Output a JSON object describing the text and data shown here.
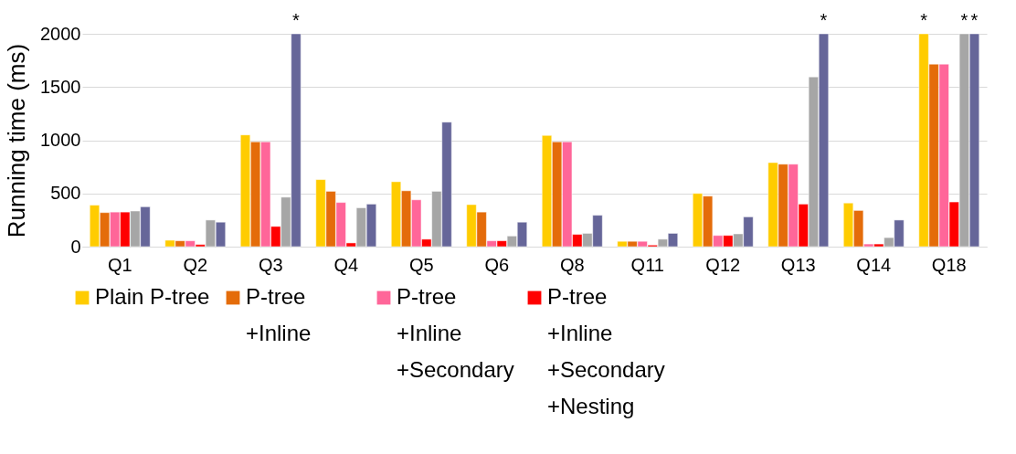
{
  "chart_data": {
    "type": "bar",
    "ylabel": "Running time (ms)",
    "categories": [
      "Q1",
      "Q2",
      "Q3",
      "Q4",
      "Q5",
      "Q6",
      "Q8",
      "Q11",
      "Q12",
      "Q13",
      "Q14",
      "Q18"
    ],
    "series": [
      {
        "name": "Plain P-tree",
        "color": "#ffcc00",
        "values": [
          390,
          60,
          1050,
          630,
          610,
          395,
          1045,
          50,
          500,
          790,
          410,
          2000
        ]
      },
      {
        "name": "P-tree +Inline",
        "color": "#e46c0a",
        "values": [
          320,
          55,
          985,
          520,
          525,
          325,
          985,
          50,
          475,
          775,
          340,
          1715
        ]
      },
      {
        "name": "P-tree +Inline +Secondary",
        "color": "#ff6699",
        "values": [
          325,
          55,
          985,
          415,
          440,
          55,
          985,
          50,
          105,
          775,
          25,
          1715
        ]
      },
      {
        "name": "P-tree +Inline +Secondary +Nesting",
        "color": "#ff0000",
        "values": [
          325,
          20,
          190,
          35,
          70,
          55,
          115,
          15,
          105,
          400,
          25,
          420
        ]
      },
      {
        "color": "#a6a6a6",
        "values": [
          335,
          250,
          465,
          365,
          520,
          100,
          125,
          70,
          120,
          1595,
          85,
          2000
        ]
      },
      {
        "color": "#666699",
        "values": [
          375,
          230,
          2000,
          400,
          1170,
          230,
          295,
          125,
          280,
          2000,
          250,
          2000
        ]
      }
    ],
    "ylim": [
      0,
      2000
    ],
    "yticks": [
      0,
      500,
      1000,
      1500,
      2000
    ],
    "grid": "y",
    "legend": "bottom",
    "annotations": [
      "*",
      "*",
      "*",
      "*",
      "*"
    ]
  }
}
